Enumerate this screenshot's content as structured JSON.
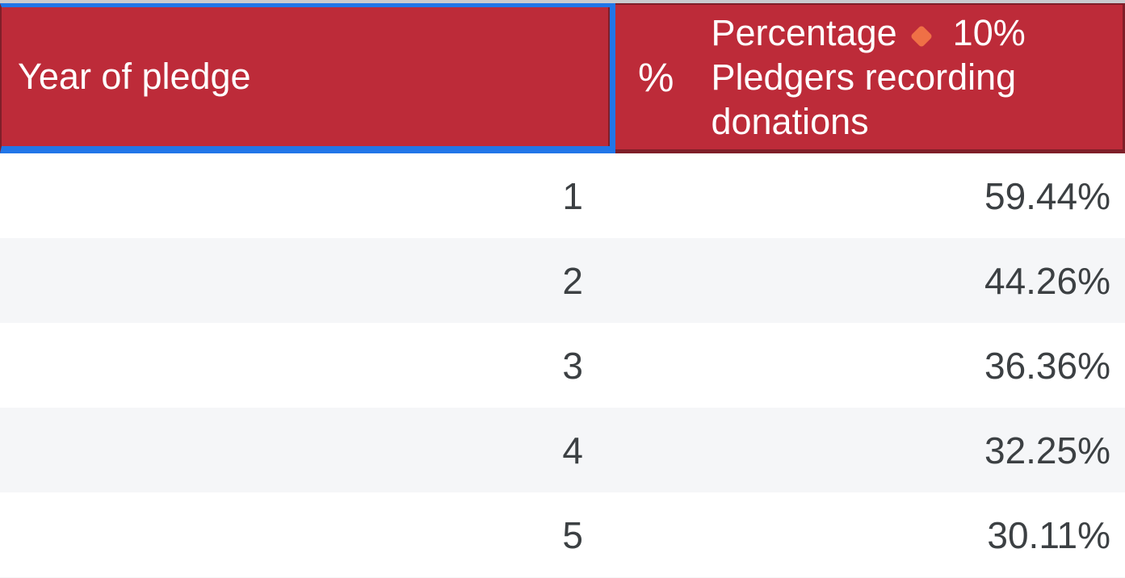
{
  "widget": "data-table",
  "colors": {
    "header_bg": "#bd2b39",
    "header_dark_border": "#7f1f29",
    "selection_blue": "#2176e8",
    "page_strip_gray": "#cacbcf",
    "row_bg": "#ffffff",
    "row_alt_bg": "#f5f6f8",
    "body_text": "#3c4043",
    "header_text": "#ffffff",
    "diamond_orange": "#ef7046"
  },
  "table": {
    "columns": [
      {
        "id": "year_of_pledge",
        "label": "Year of pledge",
        "selected": true,
        "align": "right"
      },
      {
        "id": "percentage_pledgers_recording_donations",
        "type_icon": "percent-icon",
        "type_glyph": "%",
        "label_before_badge": "Percentage",
        "badge_icon": "diamond-icon",
        "badge_value": "10%",
        "label_after_badge": "Pledgers recording donations",
        "align": "right"
      }
    ],
    "rows": [
      {
        "year": "1",
        "value": "59.44%"
      },
      {
        "year": "2",
        "value": "44.26%"
      },
      {
        "year": "3",
        "value": "36.36%"
      },
      {
        "year": "4",
        "value": "32.25%"
      },
      {
        "year": "5",
        "value": "30.11%"
      }
    ]
  },
  "chart_data": {
    "type": "table",
    "title": "",
    "columns": [
      "Year of pledge",
      "% Percentage Pledgers recording donations"
    ],
    "categories": [
      1,
      2,
      3,
      4,
      5
    ],
    "values": [
      59.44,
      44.26,
      36.36,
      32.25,
      30.11
    ],
    "value_unit": "%",
    "target_annotation": "10%",
    "layout": {
      "striped_rows": true,
      "header_bg": "#bd2b39",
      "selected_header_cell": "Year of pledge"
    }
  }
}
